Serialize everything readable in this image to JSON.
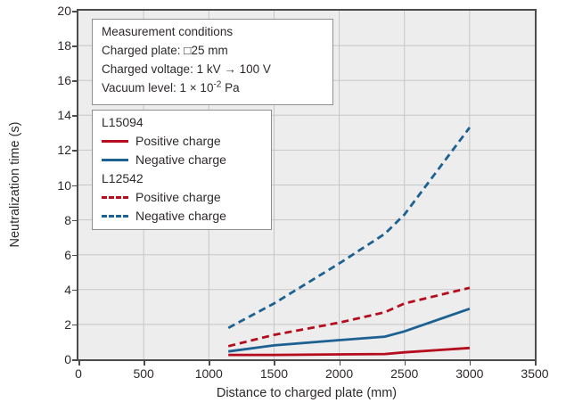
{
  "conditions": {
    "title": "Measurement conditions",
    "lines": [
      "Charged plate: □25 mm",
      "Charged voltage: 1 kV → 100 V"
    ],
    "vacuum": {
      "prefix": "Vacuum level: 1 × 10",
      "sup": "-2",
      "suffix": " Pa"
    }
  },
  "legend": {
    "groups": [
      {
        "label": "L15094",
        "entries": [
          {
            "label": "Positive charge",
            "color": "#b50d1e",
            "dash": false
          },
          {
            "label": "Negative charge",
            "color": "#1c6191",
            "dash": false
          }
        ]
      },
      {
        "label": "L12542",
        "entries": [
          {
            "label": "Positive charge",
            "color": "#b50d1e",
            "dash": true
          },
          {
            "label": "Negative charge",
            "color": "#1c6191",
            "dash": true
          }
        ]
      }
    ]
  },
  "axes": {
    "x": {
      "tick_labels": [
        "0",
        "500",
        "1000",
        "1500",
        "2000",
        "2500",
        "3000",
        "3500"
      ]
    },
    "y": {
      "tick_labels": [
        "0",
        "2",
        "4",
        "6",
        "8",
        "10",
        "12",
        "14",
        "16",
        "18",
        "20"
      ]
    }
  },
  "chart_data": {
    "type": "line",
    "title": "",
    "xlabel": "Distance to charged plate (mm)",
    "ylabel": "Neutralization time (s)",
    "xlim": [
      0,
      3500
    ],
    "ylim": [
      0,
      20
    ],
    "x_ticks": [
      0,
      500,
      1000,
      1500,
      2000,
      2500,
      3000,
      3500
    ],
    "y_ticks": [
      0,
      2,
      4,
      6,
      8,
      10,
      12,
      14,
      16,
      18,
      20
    ],
    "grid": true,
    "legend_position": "upper-left",
    "plot_background": "#ededed",
    "gridline_color": "#c6c6c6",
    "x": [
      1150,
      1500,
      2000,
      2350,
      2500,
      3000
    ],
    "series": [
      {
        "name": "L15094 Positive charge",
        "color": "#b50d1e",
        "style": "solid",
        "values": [
          0.25,
          0.25,
          0.28,
          0.3,
          0.4,
          0.65
        ]
      },
      {
        "name": "L15094 Negative charge",
        "color": "#1c6191",
        "style": "solid",
        "values": [
          0.45,
          0.8,
          1.1,
          1.3,
          1.6,
          2.9
        ]
      },
      {
        "name": "L12542 Positive charge",
        "color": "#b50d1e",
        "style": "dashed",
        "values": [
          0.75,
          1.4,
          2.1,
          2.7,
          3.2,
          4.1
        ]
      },
      {
        "name": "L12542 Negative charge",
        "color": "#1c6191",
        "style": "dashed",
        "values": [
          1.8,
          3.2,
          5.5,
          7.2,
          8.3,
          13.3
        ]
      }
    ]
  }
}
